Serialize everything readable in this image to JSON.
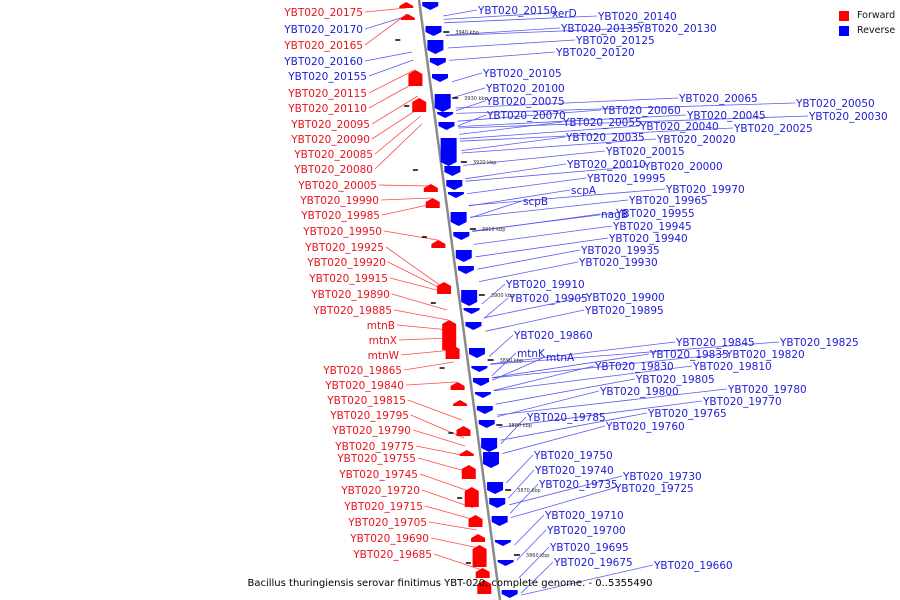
{
  "caption": "Bacillus thuringiensis serovar finitimus YBT-020, complete genome. - 0..5355490",
  "legend": [
    {
      "label": "Forward",
      "color": "#ff0000"
    },
    {
      "label": "Reverse",
      "color": "#0000ff"
    }
  ],
  "colors": {
    "forward": "#ff0000",
    "reverse": "#0000ff",
    "forward_line": "#ff4a4a",
    "reverse_line": "#5a5af0",
    "axis": "#888888"
  },
  "ticks": [
    "3940 kbp",
    "3930 kbp",
    "3920 kbp",
    "3910 kbp",
    "3900 kbp",
    "3890 kbp",
    "3880 kbp",
    "3870 kbp",
    "3860 kbp"
  ],
  "forward_labels": [
    "YBT020_20175",
    "YBT020_20170",
    "YBT020_20165",
    "YBT020_20160",
    "YBT020_20155",
    "YBT020_20115",
    "YBT020_20110",
    "YBT020_20095",
    "YBT020_20090",
    "YBT020_20085",
    "YBT020_20080",
    "YBT020_20005",
    "YBT020_19990",
    "YBT020_19985",
    "YBT020_19950",
    "YBT020_19925",
    "YBT020_19920",
    "YBT020_19915",
    "YBT020_19890",
    "YBT020_19885",
    "mtnB",
    "mtnX",
    "mtnW",
    "YBT020_19865",
    "YBT020_19840",
    "YBT020_19815",
    "YBT020_19795",
    "YBT020_19790",
    "YBT020_19775",
    "YBT020_19755",
    "YBT020_19745",
    "YBT020_19720",
    "YBT020_19715",
    "YBT020_19705",
    "YBT020_19690",
    "YBT020_19685"
  ],
  "forward_label_strand": [
    "f",
    "r",
    "f",
    "r",
    "r",
    "f",
    "f",
    "f",
    "f",
    "f",
    "f",
    "f",
    "f",
    "f",
    "f",
    "f",
    "f",
    "f",
    "f",
    "f",
    "f",
    "f",
    "f",
    "f",
    "f",
    "f",
    "f",
    "f",
    "f",
    "f",
    "f",
    "f",
    "f",
    "f",
    "f",
    "f"
  ],
  "reverse_labels": [
    "YBT020_20150",
    "xerD",
    "YBT020_20140",
    "YBT020_20135",
    "YBT020_20130",
    "YBT020_20125",
    "YBT020_20120",
    "YBT020_20105",
    "YBT020_20100",
    "YBT020_20075",
    "YBT020_20065",
    "YBT020_20050",
    "YBT020_20070",
    "YBT020_20060",
    "YBT020_20045",
    "YBT020_20030",
    "YBT020_20055",
    "YBT020_20040",
    "YBT020_20025",
    "YBT020_20035",
    "YBT020_20020",
    "YBT020_20015",
    "YBT020_20010",
    "YBT020_20000",
    "YBT020_19995",
    "scpA",
    "YBT020_19970",
    "scpB",
    "YBT020_19965",
    "nagB",
    "YBT020_19955",
    "YBT020_19945",
    "YBT020_19940",
    "YBT020_19935",
    "YBT020_19930",
    "YBT020_19910",
    "YBT020_19905",
    "YBT020_19900",
    "YBT020_19895",
    "YBT020_19860",
    "YBT020_19845",
    "YBT020_19825",
    "mtnK",
    "mtnA",
    "YBT020_19835",
    "YBT020_19820",
    "YBT020_19830",
    "YBT020_19810",
    "YBT020_19805",
    "YBT020_19800",
    "YBT020_19780",
    "YBT020_19770",
    "YBT020_19785",
    "YBT020_19765",
    "YBT020_19760",
    "YBT020_19750",
    "YBT020_19740",
    "YBT020_19730",
    "YBT020_19735",
    "YBT020_19725",
    "YBT020_19710",
    "YBT020_19700",
    "YBT020_19695",
    "YBT020_19675",
    "YBT020_19660"
  ]
}
